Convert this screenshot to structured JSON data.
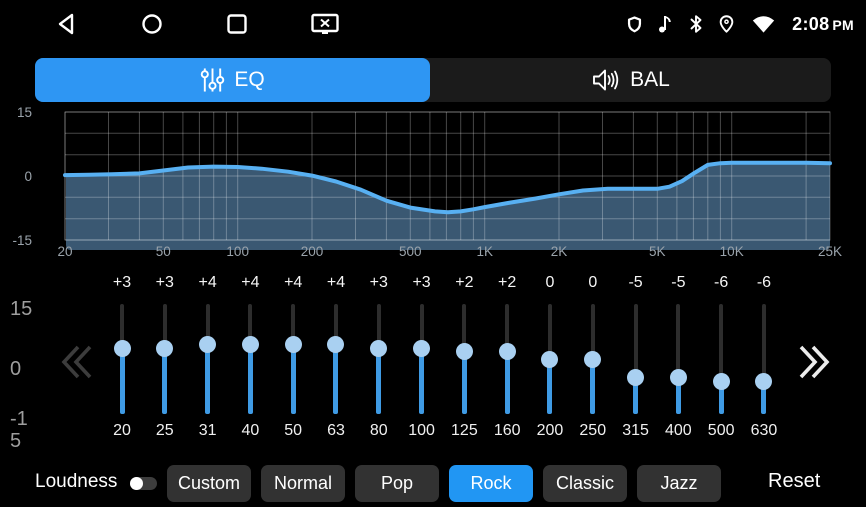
{
  "status_bar": {
    "time": "2:08",
    "meridiem": "PM",
    "nav": [
      "back",
      "home",
      "recents",
      "screenshot"
    ],
    "indicators": [
      "shield",
      "music-note",
      "bluetooth",
      "location",
      "wifi"
    ]
  },
  "tabs": {
    "eq": {
      "label": "EQ",
      "active": true
    },
    "bal": {
      "label": "BAL",
      "active": false
    }
  },
  "chart_data": {
    "type": "area",
    "x_scale": "log",
    "xlim": [
      20,
      25000
    ],
    "ylim": [
      -15,
      15
    ],
    "grid": true,
    "legend": "none",
    "x_ticks": [
      {
        "label": "20",
        "value": 20
      },
      {
        "label": "50",
        "value": 50
      },
      {
        "label": "100",
        "value": 100
      },
      {
        "label": "200",
        "value": 200
      },
      {
        "label": "500",
        "value": 500
      },
      {
        "label": "1K",
        "value": 1000
      },
      {
        "label": "2K",
        "value": 2000
      },
      {
        "label": "5K",
        "value": 5000
      },
      {
        "label": "10K",
        "value": 10000
      },
      {
        "label": "25K",
        "value": 25000
      }
    ],
    "y_ticks": [
      {
        "label": "15",
        "value": 15
      },
      {
        "label": "0",
        "value": 0
      },
      {
        "label": "-15",
        "value": -15
      }
    ],
    "points": [
      [
        20,
        0.2
      ],
      [
        25,
        0.3
      ],
      [
        31,
        0.4
      ],
      [
        40,
        0.6
      ],
      [
        50,
        1.3
      ],
      [
        63,
        2.0
      ],
      [
        80,
        2.2
      ],
      [
        100,
        2.1
      ],
      [
        125,
        1.7
      ],
      [
        160,
        1.0
      ],
      [
        200,
        0.1
      ],
      [
        250,
        -1.3
      ],
      [
        315,
        -3.2
      ],
      [
        400,
        -5.8
      ],
      [
        500,
        -7.4
      ],
      [
        630,
        -8.3
      ],
      [
        710,
        -8.5
      ],
      [
        800,
        -8.3
      ],
      [
        900,
        -7.8
      ],
      [
        1000,
        -7.3
      ],
      [
        1250,
        -6.3
      ],
      [
        1600,
        -5.3
      ],
      [
        2000,
        -4.3
      ],
      [
        2500,
        -3.4
      ],
      [
        3150,
        -3.0
      ],
      [
        4000,
        -3.0
      ],
      [
        5000,
        -3.0
      ],
      [
        5600,
        -2.5
      ],
      [
        6300,
        -1.2
      ],
      [
        7100,
        0.8
      ],
      [
        8000,
        2.6
      ],
      [
        9000,
        3.0
      ],
      [
        10000,
        3.1
      ],
      [
        12500,
        3.1
      ],
      [
        16000,
        3.1
      ],
      [
        20000,
        3.1
      ],
      [
        25000,
        3.0
      ]
    ],
    "line_color": "#58b0f2",
    "fill_color": "#3a5872",
    "grid_color": "rgba(255,255,255,0.28)",
    "tick_color": "#9aa3ab"
  },
  "equalizer": {
    "axis_labels": [
      "15",
      "0",
      "-15"
    ],
    "range": [
      -15,
      15
    ],
    "scroll_left_enabled": false,
    "scroll_right_enabled": true,
    "bands": [
      {
        "freq": "20",
        "gain_label": "+3",
        "gain": 3
      },
      {
        "freq": "25",
        "gain_label": "+3",
        "gain": 3
      },
      {
        "freq": "31",
        "gain_label": "+4",
        "gain": 4
      },
      {
        "freq": "40",
        "gain_label": "+4",
        "gain": 4
      },
      {
        "freq": "50",
        "gain_label": "+4",
        "gain": 4
      },
      {
        "freq": "63",
        "gain_label": "+4",
        "gain": 4
      },
      {
        "freq": "80",
        "gain_label": "+3",
        "gain": 3
      },
      {
        "freq": "100",
        "gain_label": "+3",
        "gain": 3
      },
      {
        "freq": "125",
        "gain_label": "+2",
        "gain": 2
      },
      {
        "freq": "160",
        "gain_label": "+2",
        "gain": 2
      },
      {
        "freq": "200",
        "gain_label": "0",
        "gain": 0
      },
      {
        "freq": "250",
        "gain_label": "0",
        "gain": 0
      },
      {
        "freq": "315",
        "gain_label": "-5",
        "gain": -5
      },
      {
        "freq": "400",
        "gain_label": "-5",
        "gain": -5
      },
      {
        "freq": "500",
        "gain_label": "-6",
        "gain": -6
      },
      {
        "freq": "630",
        "gain_label": "-6",
        "gain": -6
      }
    ]
  },
  "bottom_bar": {
    "loudness": {
      "label": "Loudness",
      "enabled": false
    },
    "presets": [
      {
        "label": "Custom",
        "active": false
      },
      {
        "label": "Normal",
        "active": false
      },
      {
        "label": "Pop",
        "active": false
      },
      {
        "label": "Rock",
        "active": true
      },
      {
        "label": "Classic",
        "active": false
      },
      {
        "label": "Jazz",
        "active": false
      }
    ],
    "reset_label": "Reset"
  },
  "colors": {
    "accent": "#2e96f3",
    "preset_active": "#2196f3",
    "slider_fill": "#3f9be5",
    "slider_thumb": "#a9d0f1"
  }
}
